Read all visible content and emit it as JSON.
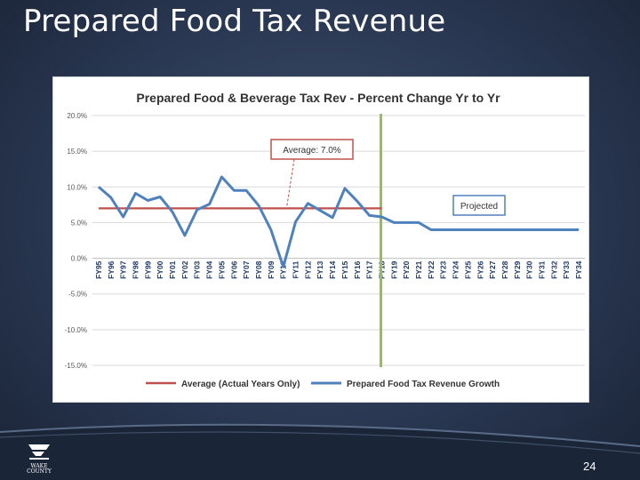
{
  "slide": {
    "title": "Prepared Food Tax Revenue",
    "page_number": "24",
    "logo_text": "WAKE COUNTY"
  },
  "colors": {
    "average_line": "#c0504d",
    "growth_line": "#4f81bd",
    "projection_divider": "#9bbb59",
    "gridline": "#d9d9d9"
  },
  "chart_data": {
    "type": "line",
    "title": "Prepared Food & Beverage Tax Rev - Percent Change Yr to Yr",
    "categories": [
      "FY95",
      "FY96",
      "FY97",
      "FY98",
      "FY99",
      "FY00",
      "FY01",
      "FY02",
      "FY03",
      "FY04",
      "FY05",
      "FY06",
      "FY07",
      "FY08",
      "FY09",
      "FY10",
      "FY11",
      "FY12",
      "FY13",
      "FY14",
      "FY15",
      "FY16",
      "FY17",
      "FY18",
      "FY19",
      "FY20",
      "FY21",
      "FY22",
      "FY23",
      "FY24",
      "FY25",
      "FY26",
      "FY27",
      "FY28",
      "FY29",
      "FY30",
      "FY31",
      "FY32",
      "FY33",
      "FY34"
    ],
    "y_ticks": [
      "20.0%",
      "15.0%",
      "10.0%",
      "5.0%",
      "0.0%",
      "-5.0%",
      "-10.0%",
      "-15.0%"
    ],
    "ylim": [
      -15,
      20
    ],
    "grid": true,
    "legend_position": "bottom",
    "series": [
      {
        "name": "Average (Actual Years Only)",
        "values": [
          7,
          7,
          7,
          7,
          7,
          7,
          7,
          7,
          7,
          7,
          7,
          7,
          7,
          7,
          7,
          7,
          7,
          7,
          7,
          7,
          7,
          7,
          7,
          7,
          null,
          null,
          null,
          null,
          null,
          null,
          null,
          null,
          null,
          null,
          null,
          null,
          null,
          null,
          null,
          null
        ]
      },
      {
        "name": "Prepared Food Tax Revenue Growth",
        "values": [
          10,
          8.5,
          5.8,
          9.1,
          8.1,
          8.6,
          6.5,
          3.2,
          6.8,
          7.6,
          11.4,
          9.5,
          9.5,
          7.4,
          4,
          -1.2,
          5.1,
          7.7,
          6.7,
          5.7,
          9.8,
          8,
          6,
          5.8,
          5,
          5,
          5,
          4,
          4,
          4,
          4,
          4,
          4,
          4,
          4,
          4,
          4,
          4,
          4,
          4
        ]
      }
    ],
    "annotations": [
      {
        "text": "Average: 7.0%",
        "points_to_index": 16
      },
      {
        "text": "Projected"
      }
    ],
    "projection_start_index": 23
  }
}
